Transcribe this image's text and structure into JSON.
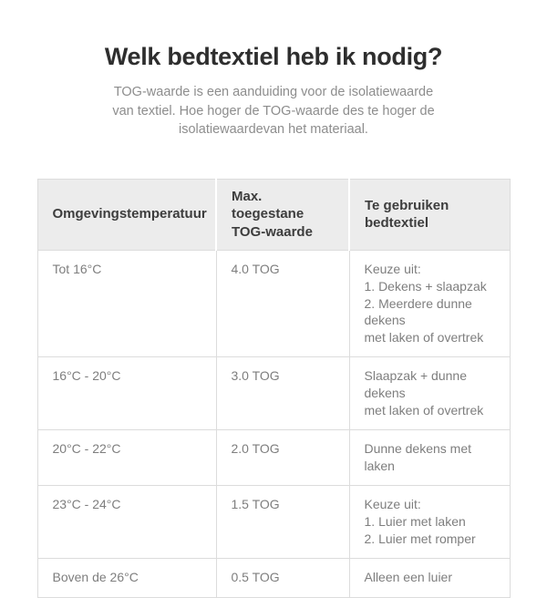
{
  "page": {
    "title": "Welk bedtextiel heb ik nodig?",
    "subtitle": "TOG-waarde is een aanduiding voor de isolatiewaarde\nvan textiel. Hoe hoger de TOG-waarde des te hoger de\nisolatiewaardevan het materiaal."
  },
  "colors": {
    "background": "#ffffff",
    "title_text": "#2e2e2e",
    "subtitle_text": "#8d8d8d",
    "header_bg": "#ececec",
    "header_text": "#3d3d3d",
    "body_text": "#7e7e7e",
    "border": "#dcdcdc"
  },
  "table": {
    "columns": [
      {
        "label": "Omgevingstemperatuur"
      },
      {
        "label": "Max. toegestane\nTOG-waarde"
      },
      {
        "label": "Te gebruiken\nbedtextiel"
      }
    ],
    "rows": [
      {
        "temperature": "Tot 16°C",
        "tog": "4.0 TOG",
        "bedtextiel": "Keuze uit:\n1. Dekens + slaapzak\n2. Meerdere dunne dekens\nmet laken of overtrek"
      },
      {
        "temperature": "16°C - 20°C",
        "tog": "3.0 TOG",
        "bedtextiel": "Slaapzak + dunne dekens\nmet laken of overtrek"
      },
      {
        "temperature": "20°C - 22°C",
        "tog": "2.0 TOG",
        "bedtextiel": "Dunne dekens met laken"
      },
      {
        "temperature": "23°C - 24°C",
        "tog": "1.5 TOG",
        "bedtextiel": "Keuze uit:\n1. Luier met laken\n2. Luier met romper"
      },
      {
        "temperature": "Boven de 26°C",
        "tog": "0.5 TOG",
        "bedtextiel": "Alleen een luier"
      }
    ]
  }
}
